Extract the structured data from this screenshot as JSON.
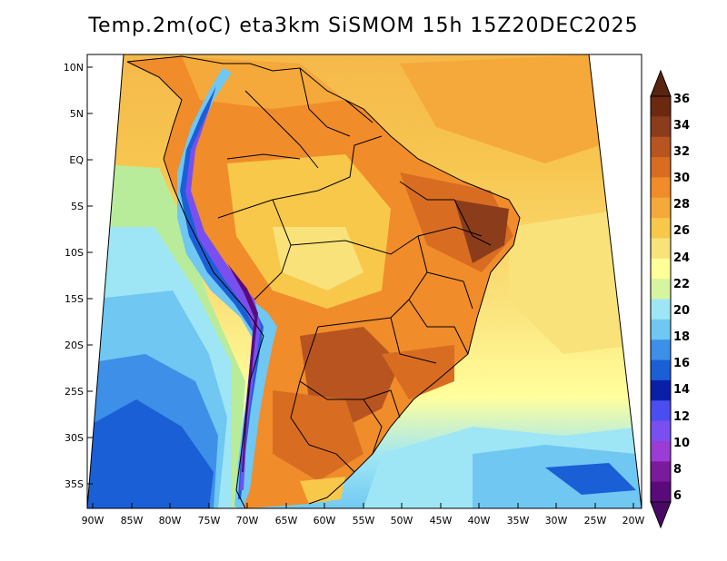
{
  "title": "Temp.2m(oC) eta3km SiSMOM 15h 15Z20DEC2025",
  "lat_labels": [
    "10N",
    "5N",
    "EQ",
    "5S",
    "10S",
    "15S",
    "20S",
    "25S",
    "30S",
    "35S"
  ],
  "lon_labels": [
    "90W",
    "85W",
    "80W",
    "75W",
    "70W",
    "65W",
    "60W",
    "55W",
    "50W",
    "45W",
    "40W",
    "35W",
    "30W",
    "25W",
    "20W"
  ],
  "colorbar": {
    "labels": [
      "36",
      "34",
      "32",
      "30",
      "28",
      "26",
      "24",
      "22",
      "20",
      "18",
      "16",
      "14",
      "12",
      "10",
      "8",
      "6"
    ],
    "colors": [
      "#6b2a10",
      "#8b3c1a",
      "#b8541f",
      "#d86d22",
      "#f08c2a",
      "#f5a93a",
      "#f8c84a",
      "#f9e27a",
      "#ffff99",
      "#d6f5a0",
      "#9ee6f5",
      "#6fc7f2",
      "#3e8fe8",
      "#1a5fd6",
      "#0a1fa8",
      "#4a4ef0",
      "#7a4ff0",
      "#9b3cd6",
      "#7a1a9c",
      "#5a0a7a"
    ],
    "top_arrow_color": "#5a2410",
    "bottom_arrow_color": "#4a0866"
  }
}
